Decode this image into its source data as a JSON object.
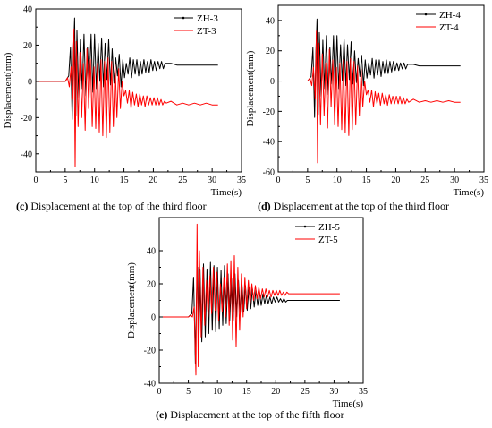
{
  "chart_data": [
    {
      "type": "line",
      "panel": "c",
      "caption_label": "(c)",
      "caption_text": " Displacement at the top of the third floor",
      "xlabel": "Time(s)",
      "ylabel": "Displacement(mm)",
      "xlim": [
        0,
        35
      ],
      "ylim": [
        -50,
        40
      ],
      "xticks": [
        0,
        5,
        10,
        15,
        20,
        25,
        30,
        35
      ],
      "yticks": [
        -40,
        -20,
        0,
        20,
        40
      ],
      "legend_position": "top-right",
      "series": [
        {
          "name": "ZH-3",
          "color": "#000000",
          "x": [
            0,
            5.0,
            5.6,
            5.9,
            6.2,
            6.4,
            6.6,
            6.8,
            7.0,
            7.3,
            7.6,
            7.9,
            8.2,
            8.5,
            8.8,
            9.1,
            9.4,
            9.7,
            10.0,
            10.3,
            10.6,
            10.9,
            11.2,
            11.5,
            11.8,
            12.1,
            12.4,
            12.7,
            13.0,
            13.3,
            13.6,
            13.9,
            14.2,
            14.5,
            14.8,
            15.1,
            15.4,
            15.7,
            16.0,
            16.3,
            16.6,
            16.9,
            17.2,
            17.5,
            17.8,
            18.1,
            18.4,
            18.7,
            19.0,
            19.3,
            19.6,
            19.9,
            20.2,
            20.5,
            20.8,
            21.1,
            21.4,
            21.7,
            22.0,
            23.0,
            24.0,
            25.0,
            26.0,
            27.0,
            28.0,
            29.0,
            30.0,
            31.0
          ],
          "y": [
            0,
            0,
            3,
            19,
            -21,
            16,
            35,
            -19,
            28,
            -9,
            23,
            -4,
            26,
            -8,
            19,
            -2,
            26,
            -6,
            26,
            -4,
            21,
            0,
            24,
            -3,
            21,
            1,
            23,
            -2,
            18,
            -1,
            13,
            3,
            15,
            -3,
            12,
            2,
            10,
            4,
            13,
            2,
            12,
            4,
            12,
            3,
            11,
            4,
            12,
            5,
            11,
            5,
            12,
            6,
            11,
            6,
            11,
            7,
            11,
            7,
            10,
            10,
            9,
            9,
            9,
            9,
            9,
            9,
            9,
            9
          ]
        },
        {
          "name": "ZT-3",
          "color": "#ff0000",
          "x": [
            0,
            5.0,
            5.4,
            5.7,
            6.0,
            6.3,
            6.5,
            6.7,
            6.9,
            7.2,
            7.5,
            7.8,
            8.1,
            8.4,
            8.7,
            9.0,
            9.3,
            9.6,
            9.9,
            10.2,
            10.5,
            10.8,
            11.1,
            11.4,
            11.7,
            12.0,
            12.3,
            12.6,
            12.9,
            13.2,
            13.5,
            13.8,
            14.1,
            14.4,
            14.7,
            15.0,
            15.3,
            15.6,
            15.9,
            16.2,
            16.5,
            16.8,
            17.1,
            17.4,
            17.7,
            18.0,
            18.3,
            18.6,
            18.9,
            19.2,
            19.5,
            19.8,
            20.1,
            20.4,
            20.7,
            21.0,
            21.3,
            21.6,
            21.9,
            22.2,
            23.0,
            24.0,
            25.0,
            26.0,
            27.0,
            28.0,
            29.0,
            30.0,
            31.0
          ],
          "y": [
            0,
            0,
            2,
            -3,
            8,
            -10,
            29,
            -47,
            22,
            -25,
            16,
            -20,
            10,
            -27,
            18,
            -15,
            12,
            -25,
            8,
            -26,
            10,
            -28,
            12,
            -30,
            11,
            -31,
            13,
            -28,
            11,
            -25,
            9,
            -20,
            7,
            -15,
            0,
            -8,
            -5,
            -12,
            -5,
            -15,
            -6,
            -13,
            -7,
            -14,
            -7,
            -13,
            -8,
            -14,
            -8,
            -13,
            -9,
            -13,
            -9,
            -13,
            -9,
            -13,
            -10,
            -13,
            -11,
            -12,
            -11,
            -13,
            -12,
            -13,
            -12,
            -13,
            -12,
            -13,
            -13
          ]
        }
      ]
    },
    {
      "type": "line",
      "panel": "d",
      "caption_label": "(d)",
      "caption_text": " Displacement at the top of the third floor",
      "xlabel": "Time(s)",
      "ylabel": "Displacement(mm)",
      "xlim": [
        0,
        35
      ],
      "ylim": [
        -60,
        50
      ],
      "xticks": [
        0,
        5,
        10,
        15,
        20,
        25,
        30,
        35
      ],
      "yticks": [
        -60,
        -40,
        -20,
        0,
        20,
        40
      ],
      "legend_position": "top-right",
      "series": [
        {
          "name": "ZH-4",
          "color": "#000000",
          "x": [
            0,
            5.0,
            5.6,
            5.9,
            6.2,
            6.4,
            6.6,
            6.8,
            7.0,
            7.3,
            7.6,
            7.9,
            8.2,
            8.5,
            8.8,
            9.1,
            9.4,
            9.7,
            10.0,
            10.3,
            10.6,
            10.9,
            11.2,
            11.5,
            11.8,
            12.1,
            12.4,
            12.7,
            13.0,
            13.3,
            13.6,
            13.9,
            14.2,
            14.5,
            14.8,
            15.1,
            15.4,
            15.7,
            16.0,
            16.3,
            16.6,
            16.9,
            17.2,
            17.5,
            17.8,
            18.1,
            18.4,
            18.7,
            19.0,
            19.3,
            19.6,
            19.9,
            20.2,
            20.5,
            20.8,
            21.1,
            21.4,
            21.7,
            22.0,
            23.0,
            24.0,
            25.0,
            26.0,
            27.0,
            28.0,
            29.0,
            30.0,
            31.0
          ],
          "y": [
            0,
            0,
            3,
            22,
            -24,
            18,
            41,
            -22,
            32,
            -10,
            27,
            -5,
            30,
            -9,
            22,
            -2,
            30,
            -7,
            30,
            -5,
            24,
            0,
            28,
            -3,
            24,
            1,
            26,
            -2,
            20,
            -1,
            15,
            3,
            17,
            -3,
            14,
            2,
            12,
            4,
            15,
            2,
            14,
            4,
            14,
            3,
            13,
            5,
            14,
            5,
            13,
            6,
            13,
            7,
            12,
            7,
            12,
            8,
            12,
            8,
            11,
            11,
            10,
            10,
            10,
            10,
            10,
            10,
            10,
            10
          ]
        },
        {
          "name": "ZT-4",
          "color": "#ff0000",
          "x": [
            0,
            5.0,
            5.4,
            5.7,
            6.0,
            6.3,
            6.5,
            6.7,
            6.9,
            7.2,
            7.5,
            7.8,
            8.1,
            8.4,
            8.7,
            9.0,
            9.3,
            9.6,
            9.9,
            10.2,
            10.5,
            10.8,
            11.1,
            11.4,
            11.7,
            12.0,
            12.3,
            12.6,
            12.9,
            13.2,
            13.5,
            13.8,
            14.1,
            14.4,
            14.7,
            15.0,
            15.3,
            15.6,
            15.9,
            16.2,
            16.5,
            16.8,
            17.1,
            17.4,
            17.7,
            18.0,
            18.3,
            18.6,
            18.9,
            19.2,
            19.5,
            19.8,
            20.1,
            20.4,
            20.7,
            21.0,
            21.3,
            21.6,
            21.9,
            22.2,
            23.0,
            24.0,
            25.0,
            26.0,
            27.0,
            28.0,
            29.0,
            30.0,
            31.0
          ],
          "y": [
            0,
            0,
            2,
            -3,
            9,
            -12,
            33,
            -54,
            25,
            -29,
            18,
            -23,
            12,
            -31,
            21,
            -17,
            14,
            -29,
            9,
            -30,
            12,
            -32,
            14,
            -34,
            13,
            -36,
            15,
            -32,
            13,
            -29,
            10,
            -23,
            8,
            -17,
            0,
            -9,
            -6,
            -14,
            -6,
            -17,
            -7,
            -15,
            -8,
            -16,
            -8,
            -15,
            -9,
            -16,
            -9,
            -15,
            -10,
            -15,
            -10,
            -15,
            -10,
            -15,
            -11,
            -15,
            -12,
            -14,
            -12,
            -14,
            -13,
            -14,
            -13,
            -14,
            -13,
            -14,
            -14
          ]
        }
      ]
    },
    {
      "type": "line",
      "panel": "e",
      "caption_label": "(e)",
      "caption_text": " Displacement at the top of the fifth floor",
      "xlabel": "Time(s)",
      "ylabel": "Displacement(mm)",
      "xlim": [
        0,
        35
      ],
      "ylim": [
        -40,
        60
      ],
      "xticks": [
        0,
        5,
        10,
        15,
        20,
        25,
        30,
        35
      ],
      "yticks": [
        -40,
        -20,
        0,
        20,
        40
      ],
      "legend_position": "top-right",
      "series": [
        {
          "name": "ZH-5",
          "color": "#000000",
          "x": [
            0,
            5.0,
            5.6,
            5.9,
            6.2,
            6.4,
            6.6,
            6.8,
            7.0,
            7.3,
            7.6,
            7.9,
            8.2,
            8.5,
            8.8,
            9.1,
            9.4,
            9.7,
            10.0,
            10.3,
            10.6,
            10.9,
            11.2,
            11.5,
            11.8,
            12.1,
            12.4,
            12.7,
            13.0,
            13.3,
            13.6,
            13.9,
            14.2,
            14.5,
            14.8,
            15.1,
            15.4,
            15.7,
            16.0,
            16.3,
            16.6,
            16.9,
            17.2,
            17.5,
            17.8,
            18.1,
            18.4,
            18.7,
            19.0,
            19.3,
            19.6,
            19.9,
            20.2,
            20.5,
            20.8,
            21.1,
            21.4,
            21.7,
            22.0,
            23.0,
            24.0,
            25.0,
            26.0,
            27.0,
            28.0,
            29.0,
            30.0,
            31.0
          ],
          "y": [
            0,
            0,
            2,
            24,
            -28,
            14,
            30,
            -19,
            29,
            -15,
            32,
            -12,
            29,
            -10,
            33,
            -8,
            31,
            -9,
            30,
            -7,
            28,
            -5,
            31,
            -4,
            26,
            -2,
            23,
            -2,
            26,
            0,
            22,
            2,
            20,
            3,
            19,
            4,
            18,
            5,
            17,
            6,
            16,
            7,
            15,
            7,
            14,
            8,
            13,
            8,
            12,
            8,
            12,
            9,
            12,
            9,
            11,
            9,
            11,
            9,
            10,
            10,
            10,
            10,
            10,
            10,
            10,
            10,
            10,
            10
          ]
        },
        {
          "name": "ZT-5",
          "color": "#ff0000",
          "x": [
            0,
            5.0,
            5.4,
            5.7,
            6.0,
            6.3,
            6.5,
            6.7,
            6.9,
            7.2,
            7.5,
            7.8,
            8.1,
            8.4,
            8.7,
            9.0,
            9.3,
            9.6,
            9.9,
            10.2,
            10.5,
            10.8,
            11.1,
            11.4,
            11.7,
            12.0,
            12.3,
            12.6,
            12.9,
            13.2,
            13.5,
            13.8,
            14.1,
            14.4,
            14.7,
            15.0,
            15.3,
            15.6,
            15.9,
            16.2,
            16.5,
            16.8,
            17.1,
            17.4,
            17.7,
            18.0,
            18.3,
            18.6,
            18.9,
            19.2,
            19.5,
            19.8,
            20.1,
            20.4,
            20.7,
            21.0,
            21.3,
            21.6,
            21.9,
            22.2,
            23.0,
            24.0,
            25.0,
            26.0,
            27.0,
            28.0,
            29.0,
            30.0,
            31.0
          ],
          "y": [
            0,
            0,
            1,
            0,
            6,
            -35,
            56,
            -30,
            40,
            -12,
            30,
            -5,
            22,
            0,
            25,
            2,
            30,
            4,
            27,
            -2,
            20,
            3,
            24,
            0,
            32,
            -5,
            34,
            -14,
            37,
            -18,
            30,
            -8,
            26,
            0,
            24,
            5,
            22,
            8,
            20,
            10,
            19,
            11,
            18,
            11,
            17,
            12,
            17,
            12,
            16,
            12,
            16,
            13,
            16,
            13,
            16,
            13,
            15,
            13,
            15,
            14,
            14,
            14,
            14,
            14,
            14,
            14,
            14,
            14,
            14
          ]
        }
      ]
    }
  ]
}
